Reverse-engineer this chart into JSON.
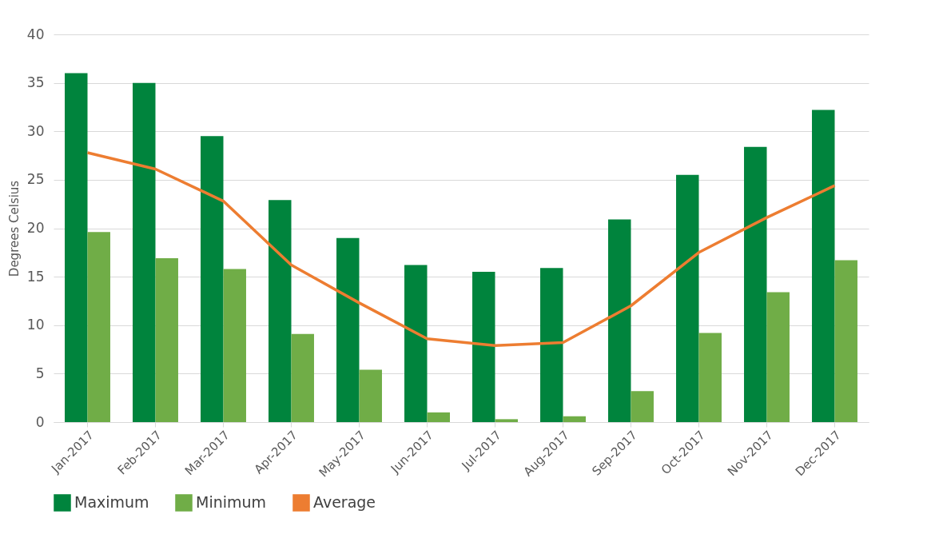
{
  "chart_data": {
    "type": "bar",
    "ylabel": "Degrees Celsius",
    "categories": [
      "Jan-2017",
      "Feb-2017",
      "Mar-2017",
      "Apr-2017",
      "May-2017",
      "Jun-2017",
      "Jul-2017",
      "Aug-2017",
      "Sep-2017",
      "Oct-2017",
      "Nov-2017",
      "Dec-2017"
    ],
    "series": [
      {
        "name": "Maximum",
        "type": "bar",
        "color": "#00843d",
        "values": [
          36,
          35,
          29.5,
          22.9,
          19,
          16.2,
          15.5,
          15.9,
          20.9,
          25.5,
          28.4,
          32.2
        ]
      },
      {
        "name": "Minimum",
        "type": "bar",
        "color": "#70ad47",
        "values": [
          19.6,
          16.9,
          15.8,
          9.1,
          5.4,
          1.0,
          0.3,
          0.6,
          3.2,
          9.2,
          13.4,
          16.7
        ]
      },
      {
        "name": "Average",
        "type": "line",
        "color": "#ed7d31",
        "values": [
          27.8,
          26.1,
          22.8,
          16.2,
          12.3,
          8.6,
          7.9,
          8.2,
          12.0,
          17.5,
          21.1,
          24.4
        ]
      }
    ],
    "ylim": [
      0,
      40
    ],
    "yticks": [
      0,
      5,
      10,
      15,
      20,
      25,
      30,
      35,
      40
    ],
    "grid": "y",
    "legend": "bottom",
    "marker": "none",
    "line_style": "solid"
  }
}
